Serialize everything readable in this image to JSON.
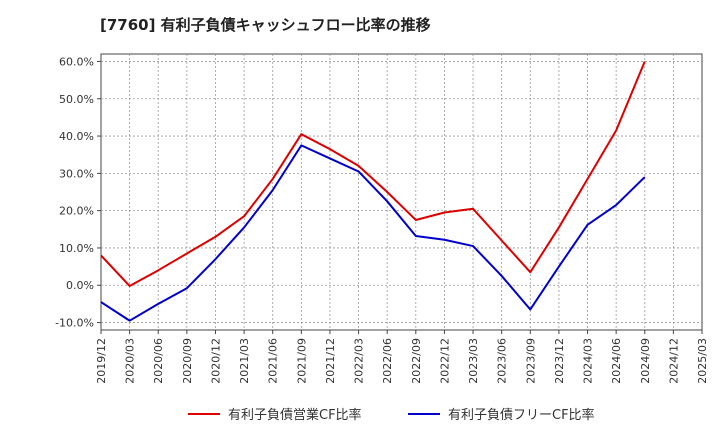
{
  "title": "[7760]  有利子負債キャッシュフロー比率の推移",
  "chart_data": {
    "type": "line",
    "title": "[7760]  有利子負債キャッシュフロー比率の推移",
    "xlabel": "",
    "ylabel": "",
    "x": [
      "2019/12",
      "2020/03",
      "2020/06",
      "2020/09",
      "2020/12",
      "2021/03",
      "2021/06",
      "2021/09",
      "2021/12",
      "2022/03",
      "2022/06",
      "2022/09",
      "2022/12",
      "2023/03",
      "2023/06",
      "2023/09",
      "2023/12",
      "2024/03",
      "2024/06",
      "2024/09",
      "2024/12",
      "2025/03"
    ],
    "ylim": [
      -12,
      62
    ],
    "yticks": [
      -10,
      0,
      10,
      20,
      30,
      40,
      50,
      60
    ],
    "ytick_labels": [
      "-10.0%",
      "0.0%",
      "10.0%",
      "20.0%",
      "30.0%",
      "40.0%",
      "50.0%",
      "60.0%"
    ],
    "grid": true,
    "legend_position": "bottom",
    "series": [
      {
        "name": "有利子負債営業CF比率",
        "color": "#dd0000",
        "values": [
          8.0,
          -0.2,
          4.0,
          8.5,
          13.0,
          18.5,
          28.5,
          40.5,
          36.5,
          32.0,
          25.0,
          17.5,
          19.5,
          20.5,
          12.0,
          3.5,
          15.5,
          28.5,
          41.5,
          60.0,
          null,
          null
        ]
      },
      {
        "name": "有利子負債フリーCF比率",
        "color": "#0000cc",
        "values": [
          -4.5,
          -9.5,
          -5.0,
          -0.8,
          7.0,
          15.5,
          25.5,
          37.5,
          34.0,
          30.5,
          22.5,
          13.2,
          12.2,
          10.5,
          2.5,
          -6.5,
          5.0,
          16.2,
          21.5,
          29.0,
          null,
          null
        ]
      }
    ]
  }
}
